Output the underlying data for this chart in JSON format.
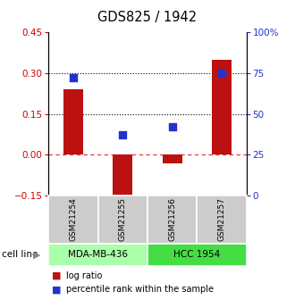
{
  "title": "GDS825 / 1942",
  "samples": [
    "GSM21254",
    "GSM21255",
    "GSM21256",
    "GSM21257"
  ],
  "log_ratios": [
    0.24,
    -0.17,
    -0.03,
    0.35
  ],
  "percentile_ranks": [
    0.72,
    0.37,
    0.42,
    0.75
  ],
  "bar_color": "#bb1111",
  "square_color": "#2233cc",
  "ylim_left": [
    -0.15,
    0.45
  ],
  "ylim_right": [
    0.0,
    1.0
  ],
  "hlines_dotted": [
    0.15,
    0.3
  ],
  "hline_dashed": 0.0,
  "cell_lines": [
    {
      "label": "MDA-MB-436",
      "samples": [
        0,
        1
      ],
      "color": "#aaffaa"
    },
    {
      "label": "HCC 1954",
      "samples": [
        2,
        3
      ],
      "color": "#44dd44"
    }
  ],
  "cell_line_label": "cell line",
  "legend_red_label": "log ratio",
  "legend_blue_label": "percentile rank within the sample",
  "left_yticks": [
    -0.15,
    0.0,
    0.15,
    0.3,
    0.45
  ],
  "right_ytick_vals": [
    0.0,
    0.25,
    0.5,
    0.75,
    1.0
  ],
  "right_ytick_labels": [
    "0",
    "25",
    "50",
    "75",
    "100%"
  ],
  "bar_width": 0.4
}
